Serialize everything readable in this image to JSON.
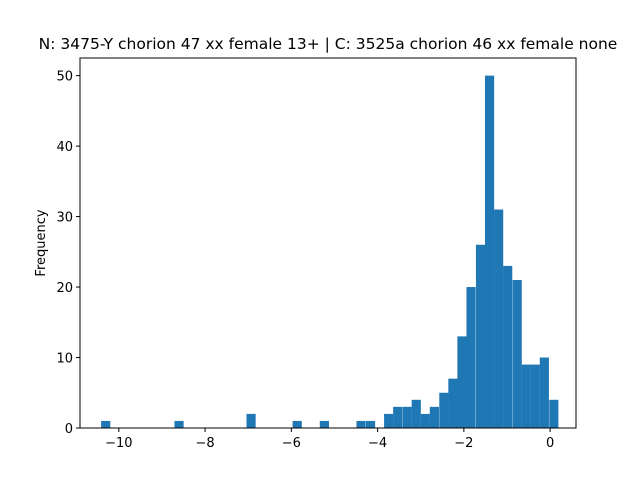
{
  "chart_data": {
    "type": "histogram",
    "title": "N: 3475-Y chorion 47 xx female 13+ | C: 3525a chorion 46 xx female none",
    "xlabel": "",
    "ylabel": "Frequency",
    "xlim": [
      -10.9,
      0.6
    ],
    "ylim": [
      0,
      52.5
    ],
    "x_ticks": [
      -10,
      -8,
      -6,
      -4,
      -2,
      0
    ],
    "x_tick_labels": [
      "−10",
      "−8",
      "−6",
      "−4",
      "−2",
      "0"
    ],
    "y_ticks": [
      0,
      10,
      20,
      30,
      40,
      50
    ],
    "y_tick_labels": [
      "0",
      "10",
      "20",
      "30",
      "40",
      "50"
    ],
    "bar_color": "#1f77b4",
    "bin_width": 0.2125,
    "bins": [
      {
        "x0": -10.41,
        "count": 1
      },
      {
        "x0": -8.71,
        "count": 1
      },
      {
        "x0": -7.04,
        "count": 2
      },
      {
        "x0": -5.97,
        "count": 1
      },
      {
        "x0": -5.34,
        "count": 1
      },
      {
        "x0": -4.49,
        "count": 1
      },
      {
        "x0": -4.27,
        "count": 1
      },
      {
        "x0": -3.85,
        "count": 2
      },
      {
        "x0": -3.64,
        "count": 3
      },
      {
        "x0": -3.42,
        "count": 3
      },
      {
        "x0": -3.21,
        "count": 4
      },
      {
        "x0": -3.0,
        "count": 2
      },
      {
        "x0": -2.79,
        "count": 3
      },
      {
        "x0": -2.57,
        "count": 5
      },
      {
        "x0": -2.36,
        "count": 7
      },
      {
        "x0": -2.15,
        "count": 13
      },
      {
        "x0": -1.94,
        "count": 20
      },
      {
        "x0": -1.72,
        "count": 26
      },
      {
        "x0": -1.51,
        "count": 50
      },
      {
        "x0": -1.3,
        "count": 31
      },
      {
        "x0": -1.09,
        "count": 23
      },
      {
        "x0": -0.87,
        "count": 21
      },
      {
        "x0": -0.66,
        "count": 9
      },
      {
        "x0": -0.45,
        "count": 9
      },
      {
        "x0": -0.24,
        "count": 10
      },
      {
        "x0": -0.02,
        "count": 4
      }
    ]
  }
}
